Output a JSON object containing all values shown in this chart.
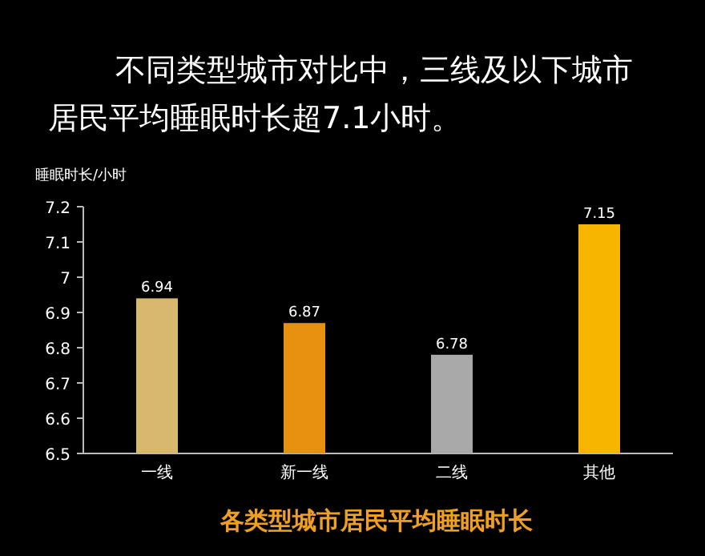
{
  "chart_data": {
    "type": "bar",
    "title": "不同类型城市对比中，三线及以下城市居民平均睡眠时长超7.1小时。",
    "ylabel": "睡眠时长/小时",
    "categories": [
      "一线",
      "新一线",
      "二线",
      "其他"
    ],
    "values": [
      6.94,
      6.87,
      6.78,
      7.15
    ],
    "colors": [
      "#d8b86e",
      "#e8900f",
      "#a9a9a9",
      "#f7b500"
    ],
    "ylim": [
      6.5,
      7.2
    ],
    "yticks": [
      6.5,
      6.6,
      6.7,
      6.8,
      6.9,
      7,
      7.1,
      7.2
    ],
    "data_labels": true,
    "annotations": [
      "各类型城市居民平均睡眠时长"
    ]
  }
}
